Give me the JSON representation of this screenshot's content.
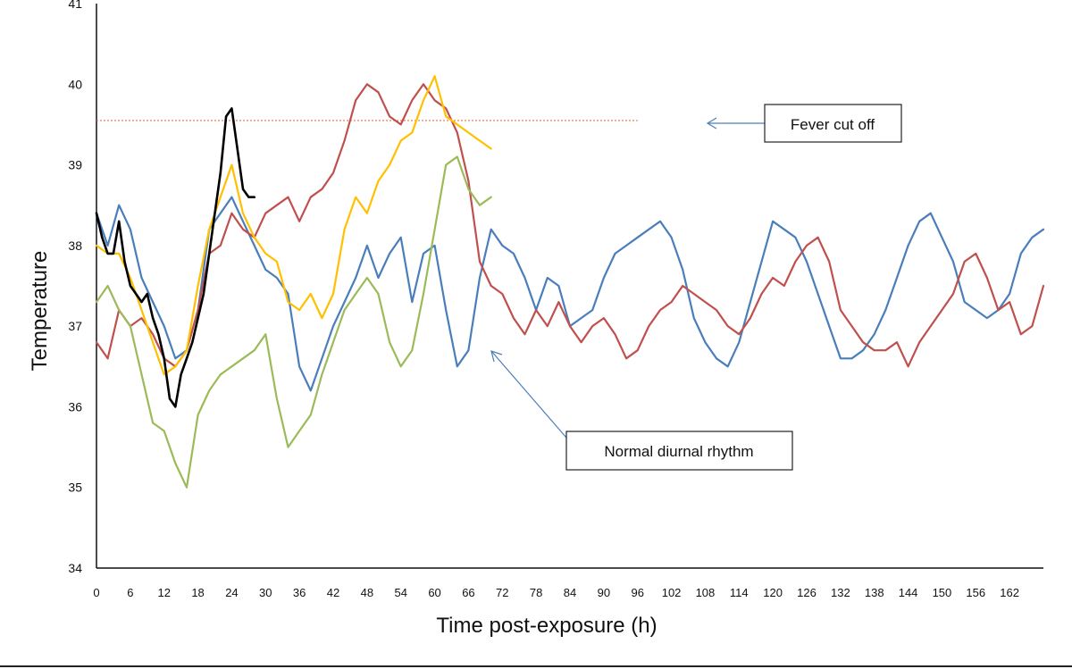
{
  "chart_data": {
    "type": "line",
    "xlabel": "Time post-exposure (h)",
    "ylabel": "Temperature",
    "xlim": [
      0,
      168
    ],
    "ylim": [
      34,
      41
    ],
    "y_ticks": [
      "34",
      "35",
      "36",
      "37",
      "38",
      "39",
      "40",
      "41"
    ],
    "x_ticks": [
      "0",
      "6",
      "12",
      "18",
      "24",
      "30",
      "36",
      "42",
      "48",
      "54",
      "60",
      "66",
      "72",
      "78",
      "84",
      "90",
      "96",
      "102",
      "108",
      "114",
      "120",
      "126",
      "132",
      "138",
      "144",
      "150",
      "156",
      "162"
    ],
    "grid": false,
    "legend": "none",
    "reference_line": {
      "y": 39.55,
      "x_range": [
        0,
        96
      ],
      "color": "#e8734a"
    },
    "annotations": [
      {
        "text": "Fever cut off",
        "points_to": [
          96,
          39.55
        ]
      },
      {
        "text": "Normal diurnal rhythm",
        "points_to": [
          66,
          36.7
        ]
      }
    ],
    "series": [
      {
        "color": "#4a7ebb",
        "x": [
          0,
          2,
          4,
          6,
          8,
          10,
          12,
          14,
          16,
          18,
          20,
          22,
          24,
          26,
          28,
          30,
          32,
          34,
          36,
          38,
          40,
          42,
          44,
          46,
          48,
          50,
          52,
          54,
          56,
          58,
          60,
          62,
          64,
          66,
          68,
          70,
          72,
          74,
          76,
          78,
          80,
          82,
          84,
          86,
          88,
          90,
          92,
          94,
          96,
          98,
          100,
          102,
          104,
          106,
          108,
          110,
          112,
          114,
          116,
          118,
          120,
          122,
          124,
          126,
          128,
          130,
          132,
          134,
          136,
          138,
          140,
          142,
          144,
          146,
          148,
          150,
          152,
          154,
          156,
          158,
          160,
          162,
          164,
          166,
          168
        ],
        "y": [
          38.4,
          38.0,
          38.5,
          38.2,
          37.6,
          37.3,
          37.0,
          36.6,
          36.7,
          37.2,
          38.2,
          38.4,
          38.6,
          38.3,
          38.0,
          37.7,
          37.6,
          37.4,
          36.5,
          36.2,
          36.6,
          37.0,
          37.3,
          37.6,
          38.0,
          37.6,
          37.9,
          38.1,
          37.3,
          37.9,
          38.0,
          37.2,
          36.5,
          36.7,
          37.6,
          38.2,
          38.0,
          37.9,
          37.6,
          37.2,
          37.6,
          37.5,
          37.0,
          37.1,
          37.2,
          37.6,
          37.9,
          38.0,
          38.1,
          38.2,
          38.3,
          38.1,
          37.7,
          37.1,
          36.8,
          36.6,
          36.5,
          36.8,
          37.3,
          37.8,
          38.3,
          38.2,
          38.1,
          37.8,
          37.4,
          37.0,
          36.6,
          36.6,
          36.7,
          36.9,
          37.2,
          37.6,
          38.0,
          38.3,
          38.4,
          38.1,
          37.8,
          37.3,
          37.2,
          37.1,
          37.2,
          37.4,
          37.9,
          38.1,
          38.2
        ]
      },
      {
        "color": "#c0504d",
        "x": [
          0,
          2,
          4,
          6,
          8,
          10,
          12,
          14,
          16,
          18,
          20,
          22,
          24,
          26,
          28,
          30,
          32,
          34,
          36,
          38,
          40,
          42,
          44,
          46,
          48,
          50,
          52,
          54,
          56,
          58,
          60,
          62,
          64,
          66,
          68,
          70,
          72,
          74,
          76,
          78,
          80,
          82,
          84,
          86,
          88,
          90,
          92,
          94,
          96,
          98,
          100,
          102,
          104,
          106,
          108,
          110,
          112,
          114,
          116,
          118,
          120,
          122,
          124,
          126,
          128,
          130,
          132,
          134,
          136,
          138,
          140,
          142,
          144,
          146,
          148,
          150,
          152,
          154,
          156,
          158,
          160,
          162,
          164,
          166,
          168
        ],
        "y": [
          36.8,
          36.6,
          37.2,
          37.0,
          37.1,
          36.9,
          36.6,
          36.5,
          36.7,
          37.2,
          37.9,
          38.0,
          38.4,
          38.2,
          38.1,
          38.4,
          38.5,
          38.6,
          38.3,
          38.6,
          38.7,
          38.9,
          39.3,
          39.8,
          40.0,
          39.9,
          39.6,
          39.5,
          39.8,
          40.0,
          39.8,
          39.7,
          39.4,
          38.8,
          37.8,
          37.5,
          37.4,
          37.1,
          36.9,
          37.2,
          37.0,
          37.3,
          37.0,
          36.8,
          37.0,
          37.1,
          36.9,
          36.6,
          36.7,
          37.0,
          37.2,
          37.3,
          37.5,
          37.4,
          37.3,
          37.2,
          37.0,
          36.9,
          37.1,
          37.4,
          37.6,
          37.5,
          37.8,
          38.0,
          38.1,
          37.8,
          37.2,
          37.0,
          36.8,
          36.7,
          36.7,
          36.8,
          36.5,
          36.8,
          37.0,
          37.2,
          37.4,
          37.8,
          37.9,
          37.6,
          37.2,
          37.3,
          36.9,
          37.0,
          37.5
        ]
      },
      {
        "color": "#ffc000",
        "x": [
          0,
          2,
          4,
          6,
          8,
          10,
          12,
          14,
          16,
          18,
          20,
          22,
          24,
          26,
          28,
          30,
          32,
          34,
          36,
          38,
          40,
          42,
          44,
          46,
          48,
          50,
          52,
          54,
          56,
          58,
          60,
          62,
          64,
          66,
          68,
          70
        ],
        "y": [
          38.0,
          37.9,
          37.9,
          37.6,
          37.2,
          36.8,
          36.4,
          36.5,
          36.7,
          37.5,
          38.2,
          38.6,
          39.0,
          38.4,
          38.1,
          37.9,
          37.8,
          37.3,
          37.2,
          37.4,
          37.1,
          37.4,
          38.2,
          38.6,
          38.4,
          38.8,
          39.0,
          39.3,
          39.4,
          39.8,
          40.1,
          39.6,
          39.5,
          39.4,
          39.3,
          39.2
        ]
      },
      {
        "color": "#9bbb59",
        "x": [
          0,
          2,
          4,
          6,
          8,
          10,
          12,
          14,
          16,
          18,
          20,
          22,
          24,
          26,
          28,
          30,
          32,
          34,
          36,
          38,
          40,
          42,
          44,
          46,
          48,
          50,
          52,
          54,
          56,
          58,
          60,
          62,
          64,
          66,
          68,
          70
        ],
        "y": [
          37.3,
          37.5,
          37.2,
          37.0,
          36.4,
          35.8,
          35.7,
          35.3,
          35.0,
          35.9,
          36.2,
          36.4,
          36.5,
          36.6,
          36.7,
          36.9,
          36.1,
          35.5,
          35.7,
          35.9,
          36.4,
          36.8,
          37.2,
          37.4,
          37.6,
          37.4,
          36.8,
          36.5,
          36.7,
          37.4,
          38.2,
          39.0,
          39.1,
          38.7,
          38.5,
          38.6
        ]
      },
      {
        "color": "#000000",
        "x": [
          0,
          1,
          2,
          3,
          4,
          5,
          6,
          7,
          8,
          9,
          10,
          11,
          12,
          13,
          14,
          15,
          16,
          17,
          18,
          19,
          20,
          21,
          22,
          23,
          24,
          25,
          26,
          27,
          28
        ],
        "y": [
          38.4,
          38.1,
          37.9,
          37.9,
          38.3,
          37.8,
          37.5,
          37.4,
          37.3,
          37.4,
          37.1,
          36.9,
          36.6,
          36.1,
          36.0,
          36.4,
          36.6,
          36.8,
          37.1,
          37.4,
          37.9,
          38.4,
          38.9,
          39.6,
          39.7,
          39.2,
          38.7,
          38.6,
          38.6
        ]
      }
    ]
  }
}
